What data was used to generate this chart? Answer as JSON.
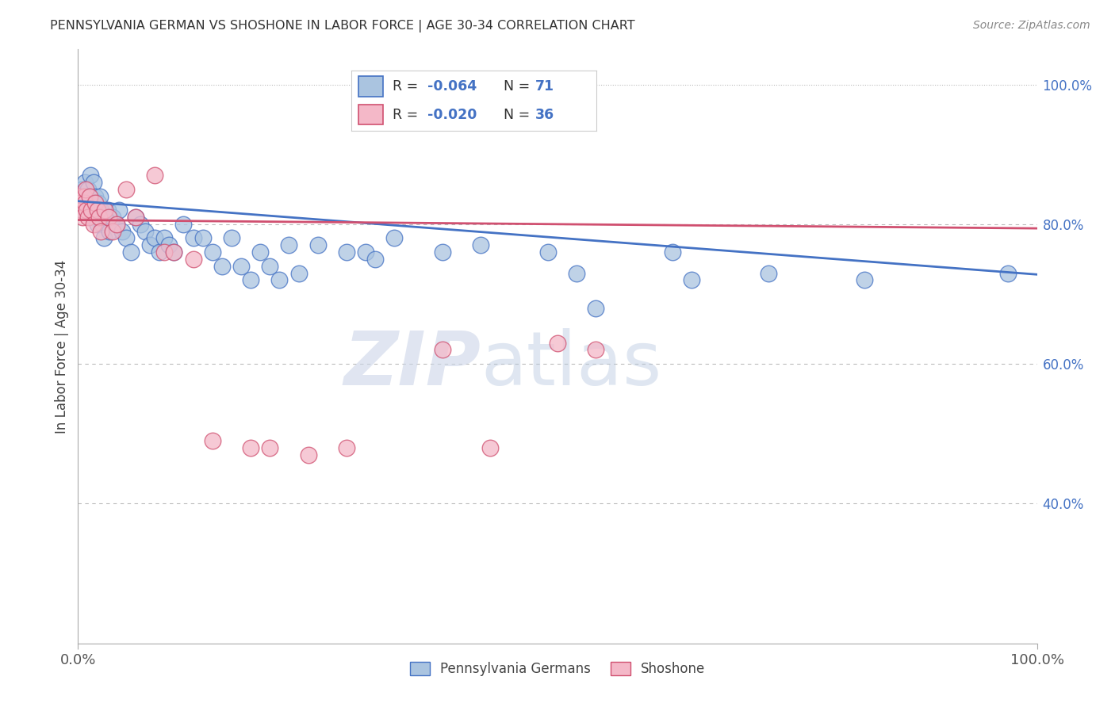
{
  "title": "PENNSYLVANIA GERMAN VS SHOSHONE IN LABOR FORCE | AGE 30-34 CORRELATION CHART",
  "source": "Source: ZipAtlas.com",
  "ylabel": "In Labor Force | Age 30-34",
  "legend_blue_label": "Pennsylvania Germans",
  "legend_pink_label": "Shoshone",
  "blue_color": "#aac4e0",
  "pink_color": "#f4b8c8",
  "blue_line_color": "#4472c4",
  "pink_line_color": "#d05070",
  "blue_r": "-0.064",
  "blue_n": "71",
  "pink_r": "-0.020",
  "pink_n": "36",
  "watermark_color": "#ccd5e8",
  "grid_color": "#bbbbbb",
  "right_tick_color": "#4472c4",
  "blue_line_intercept": 0.833,
  "blue_line_slope": -0.105,
  "pink_line_intercept": 0.806,
  "pink_line_slope": -0.012,
  "blue_x": [
    0.002,
    0.003,
    0.004,
    0.005,
    0.006,
    0.007,
    0.008,
    0.009,
    0.01,
    0.011,
    0.012,
    0.013,
    0.014,
    0.015,
    0.016,
    0.017,
    0.018,
    0.019,
    0.02,
    0.021,
    0.022,
    0.023,
    0.024,
    0.025,
    0.027,
    0.029,
    0.031,
    0.033,
    0.036,
    0.04,
    0.043,
    0.046,
    0.05,
    0.055,
    0.06,
    0.065,
    0.07,
    0.075,
    0.08,
    0.085,
    0.09,
    0.095,
    0.1,
    0.11,
    0.12,
    0.13,
    0.14,
    0.15,
    0.16,
    0.17,
    0.18,
    0.19,
    0.2,
    0.21,
    0.22,
    0.23,
    0.25,
    0.28,
    0.3,
    0.31,
    0.33,
    0.38,
    0.42,
    0.49,
    0.52,
    0.54,
    0.62,
    0.64,
    0.72,
    0.82,
    0.97
  ],
  "blue_y": [
    0.84,
    0.83,
    0.85,
    0.82,
    0.84,
    0.86,
    0.83,
    0.82,
    0.85,
    0.84,
    0.83,
    0.87,
    0.82,
    0.81,
    0.86,
    0.83,
    0.84,
    0.82,
    0.8,
    0.83,
    0.81,
    0.84,
    0.82,
    0.8,
    0.78,
    0.81,
    0.82,
    0.79,
    0.81,
    0.8,
    0.82,
    0.79,
    0.78,
    0.76,
    0.81,
    0.8,
    0.79,
    0.77,
    0.78,
    0.76,
    0.78,
    0.77,
    0.76,
    0.8,
    0.78,
    0.78,
    0.76,
    0.74,
    0.78,
    0.74,
    0.72,
    0.76,
    0.74,
    0.72,
    0.77,
    0.73,
    0.77,
    0.76,
    0.76,
    0.75,
    0.78,
    0.76,
    0.77,
    0.76,
    0.73,
    0.68,
    0.76,
    0.72,
    0.73,
    0.72,
    0.73
  ],
  "pink_x": [
    0.001,
    0.002,
    0.003,
    0.004,
    0.005,
    0.006,
    0.007,
    0.008,
    0.009,
    0.01,
    0.012,
    0.014,
    0.016,
    0.018,
    0.02,
    0.022,
    0.024,
    0.028,
    0.032,
    0.036,
    0.04,
    0.05,
    0.06,
    0.08,
    0.09,
    0.1,
    0.12,
    0.14,
    0.18,
    0.2,
    0.24,
    0.28,
    0.38,
    0.43,
    0.5,
    0.54
  ],
  "pink_y": [
    0.84,
    0.83,
    0.83,
    0.82,
    0.81,
    0.84,
    0.83,
    0.85,
    0.82,
    0.81,
    0.84,
    0.82,
    0.8,
    0.83,
    0.82,
    0.81,
    0.79,
    0.82,
    0.81,
    0.79,
    0.8,
    0.85,
    0.81,
    0.87,
    0.76,
    0.76,
    0.75,
    0.49,
    0.48,
    0.48,
    0.47,
    0.48,
    0.62,
    0.48,
    0.63,
    0.62
  ]
}
